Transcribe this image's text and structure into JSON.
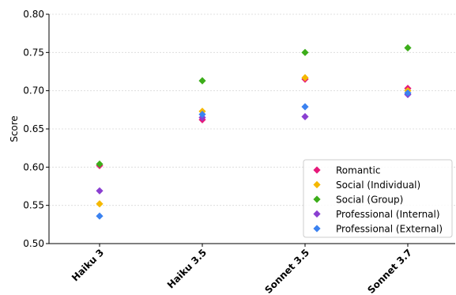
{
  "chart_data": {
    "type": "scatter",
    "title": "",
    "xlabel": "",
    "ylabel": "Score",
    "categories": [
      "Haiku 3",
      "Haiku 3.5",
      "Sonnet 3.5",
      "Sonnet 3.7"
    ],
    "ylim": [
      0.5,
      0.8
    ],
    "yticks": [
      "0.50",
      "0.55",
      "0.60",
      "0.65",
      "0.70",
      "0.75",
      "0.80"
    ],
    "grid": true,
    "legend_position": "bottom-right",
    "marker": "diamond",
    "series": [
      {
        "name": "Romantic",
        "color": "#e6197a",
        "values": [
          0.602,
          0.662,
          0.715,
          0.703
        ]
      },
      {
        "name": "Social (Individual)",
        "color": "#f5b800",
        "values": [
          0.552,
          0.673,
          0.717,
          0.7
        ]
      },
      {
        "name": "Social (Group)",
        "color": "#3cad1a",
        "values": [
          0.604,
          0.713,
          0.75,
          0.756
        ]
      },
      {
        "name": "Professional (Internal)",
        "color": "#8a3fd1",
        "values": [
          0.569,
          0.665,
          0.666,
          0.695
        ]
      },
      {
        "name": "Professional (External)",
        "color": "#3b82f0",
        "values": [
          0.536,
          0.669,
          0.679,
          0.697
        ]
      }
    ]
  }
}
